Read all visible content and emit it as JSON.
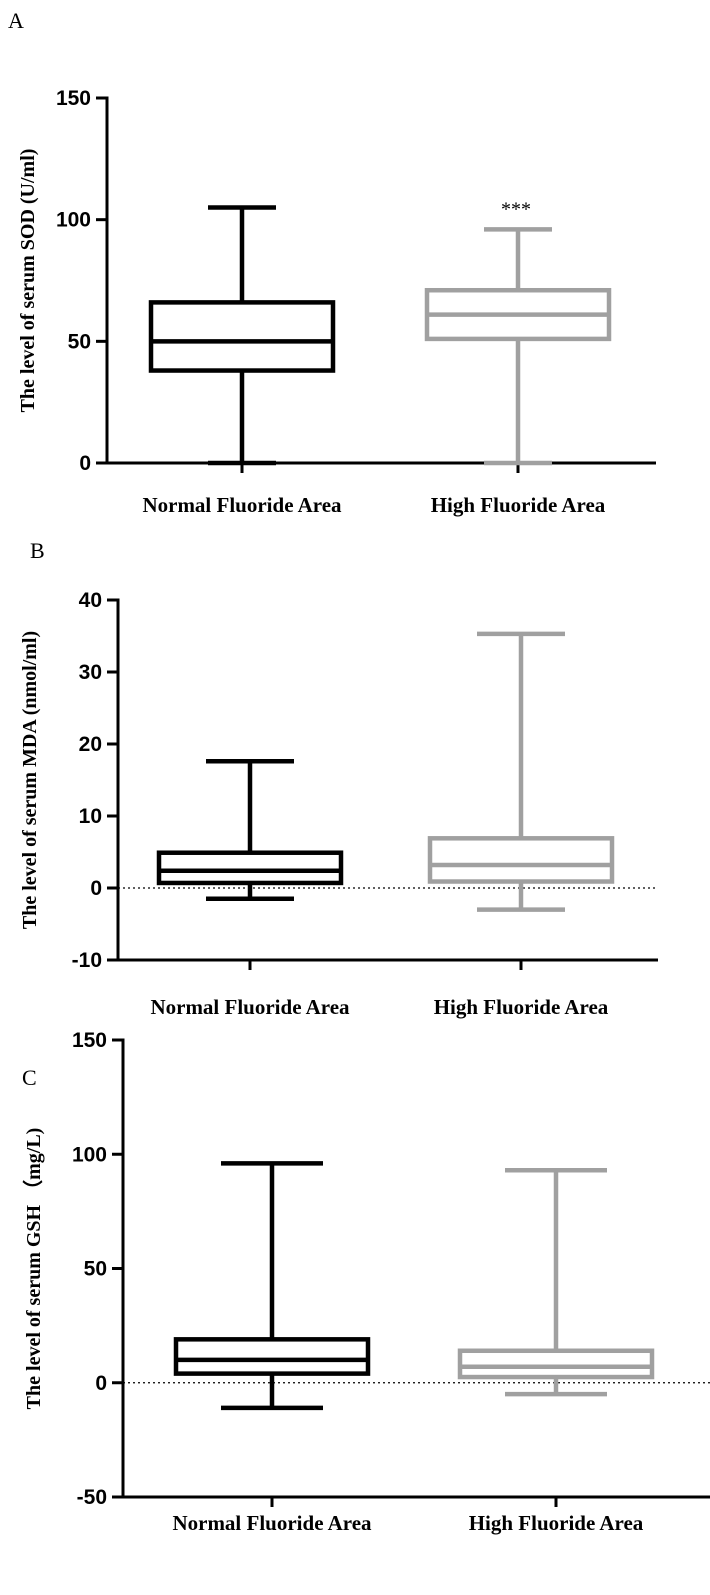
{
  "chart_data": [
    {
      "type": "box",
      "panel": "A",
      "ylabel": "The level of serum SOD (U/ml)",
      "ylim": [
        0,
        150
      ],
      "yticks": [
        0,
        50,
        100,
        150
      ],
      "zero_line": false,
      "categories": [
        "Normal Fluoride Area",
        "High Fluoride Area"
      ],
      "series": [
        {
          "category": "Normal Fluoride Area",
          "color": "#000000",
          "min": 0,
          "q1": 38,
          "median": 50,
          "q3": 66,
          "max": 105
        },
        {
          "category": "High Fluoride Area",
          "color": "#a0a0a0",
          "min": 0,
          "q1": 51,
          "median": 61,
          "q3": 71,
          "max": 96,
          "annotation": "***"
        }
      ]
    },
    {
      "type": "box",
      "panel": "B",
      "ylabel": "The level of serum MDA (nmol/ml)",
      "ylim": [
        -10,
        40
      ],
      "yticks": [
        -10,
        0,
        10,
        20,
        30,
        40
      ],
      "zero_line": true,
      "categories": [
        "Normal Fluoride Area",
        "High Fluoride Area"
      ],
      "series": [
        {
          "category": "Normal Fluoride Area",
          "color": "#000000",
          "min": -1.5,
          "q1": 0.7,
          "median": 2.4,
          "q3": 4.9,
          "max": 17.6
        },
        {
          "category": "High Fluoride Area",
          "color": "#a0a0a0",
          "min": -3,
          "q1": 0.9,
          "median": 3.2,
          "q3": 6.9,
          "max": 35.3
        }
      ]
    },
    {
      "type": "box",
      "panel": "C",
      "ylabel": "The level of serum GSH （mg/L)",
      "ylim": [
        -50,
        150
      ],
      "yticks": [
        -50,
        0,
        50,
        100,
        150
      ],
      "zero_line": true,
      "categories": [
        "Normal Fluoride Area",
        "High Fluoride Area"
      ],
      "series": [
        {
          "category": "Normal Fluoride Area",
          "color": "#000000",
          "min": -11,
          "q1": 4,
          "median": 10,
          "q3": 19,
          "max": 96
        },
        {
          "category": "High Fluoride Area",
          "color": "#a0a0a0",
          "min": -5,
          "q1": 2.5,
          "median": 7,
          "q3": 14,
          "max": 93
        }
      ]
    }
  ]
}
